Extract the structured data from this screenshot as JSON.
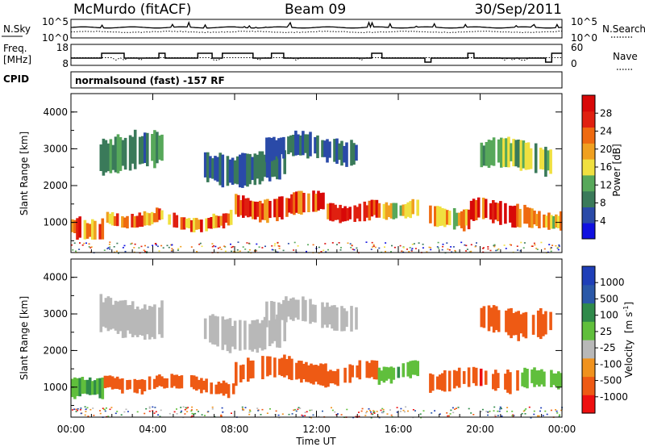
{
  "header": {
    "station": "McMurdo (fitACF)",
    "beam": "Beam 09",
    "date": "30/Sep/2011"
  },
  "noise_panel": {
    "left_label": "N.Sky",
    "right_label": "N.Search",
    "left_ticks": [
      "10^5",
      "10^0"
    ],
    "right_ticks": [
      "10^5",
      "10^0"
    ]
  },
  "freq_panel": {
    "left_label_line1": "Freq.",
    "left_label_line2": "[MHz]",
    "left_ticks": [
      "18",
      "8"
    ],
    "right_label": "Nave",
    "right_ticks": [
      "60",
      "0"
    ]
  },
  "cpid": {
    "label": "CPID",
    "text": "normalsound (fast) -157 RF"
  },
  "colors": {
    "power_scale": [
      "#1010e0",
      "#2a4aa8",
      "#3a7a5a",
      "#57a85a",
      "#f0e040",
      "#f0a020",
      "#ef6a10",
      "#e02010",
      "#d80808"
    ],
    "velocity_scale": [
      "#ee1010",
      "#ee5a14",
      "#f0921e",
      "#b8b8b8",
      "#60bf3c",
      "#2f8a4a",
      "#2a58a8",
      "#1f3fb8"
    ],
    "ground_scatter": "#9a9a9a"
  },
  "chart_data": [
    {
      "type": "heatmap",
      "title": "",
      "xlabel": "Time UT",
      "ylabel": "Slant Range [km]",
      "x_ticks": [
        "00:00",
        "04:00",
        "08:00",
        "12:00",
        "16:00",
        "20:00",
        "00:00"
      ],
      "y_ticks": [
        "1000",
        "2000",
        "3000",
        "4000"
      ],
      "xlim_hours": [
        0,
        24
      ],
      "ylim_km": [
        180,
        4500
      ],
      "colorbar_label": "Power [dB]",
      "colorbar_ticks": [
        "4",
        "8",
        "12",
        "16",
        "20",
        "24",
        "28"
      ],
      "colorbar_range": [
        0,
        30
      ],
      "echo_bands": [
        {
          "start_h": 0.0,
          "end_h": 1.6,
          "center_km": 900,
          "width_km": 500,
          "value": 22
        },
        {
          "start_h": 1.6,
          "end_h": 4.5,
          "center_km": 1150,
          "width_km": 350,
          "value": 20
        },
        {
          "start_h": 4.5,
          "end_h": 8.0,
          "center_km": 1050,
          "width_km": 350,
          "value": 22
        },
        {
          "start_h": 8.0,
          "end_h": 12.5,
          "center_km": 1450,
          "width_km": 550,
          "value": 24
        },
        {
          "start_h": 12.5,
          "end_h": 15.0,
          "center_km": 1350,
          "width_km": 450,
          "value": 25
        },
        {
          "start_h": 15.0,
          "end_h": 17.0,
          "center_km": 1400,
          "width_km": 400,
          "value": 16
        },
        {
          "start_h": 17.5,
          "end_h": 19.5,
          "center_km": 1200,
          "width_km": 500,
          "value": 18
        },
        {
          "start_h": 19.5,
          "end_h": 22.0,
          "center_km": 1250,
          "width_km": 550,
          "value": 26
        },
        {
          "start_h": 22.0,
          "end_h": 24.0,
          "center_km": 1150,
          "width_km": 450,
          "value": 18
        },
        {
          "start_h": 1.4,
          "end_h": 4.5,
          "center_km": 2900,
          "width_km": 900,
          "value": 9
        },
        {
          "start_h": 6.5,
          "end_h": 10.5,
          "center_km": 2500,
          "width_km": 800,
          "value": 7
        },
        {
          "start_h": 9.5,
          "end_h": 14.0,
          "center_km": 3000,
          "width_km": 600,
          "value": 6
        },
        {
          "start_h": 20.0,
          "end_h": 23.5,
          "center_km": 2800,
          "width_km": 700,
          "value": 12
        }
      ]
    },
    {
      "type": "heatmap",
      "title": "",
      "xlabel": "Time UT",
      "ylabel": "Slant Range [km]",
      "x_ticks": [
        "00:00",
        "04:00",
        "08:00",
        "12:00",
        "16:00",
        "20:00",
        "00:00"
      ],
      "y_ticks": [
        "1000",
        "2000",
        "3000",
        "4000"
      ],
      "xlim_hours": [
        0,
        24
      ],
      "ylim_km": [
        180,
        4500
      ],
      "colorbar_label": "Velocity [m s^-1]",
      "colorbar_title": "Velocity",
      "colorbar_unit": "[m s",
      "colorbar_unit_exp": "-1",
      "colorbar_unit_close": "]",
      "colorbar_ticks": [
        "1000",
        "500",
        "100",
        "25",
        "-25",
        "-100",
        "-500",
        "-1000"
      ],
      "colorbar_range": [
        -1000,
        1000
      ],
      "echo_bands": [
        {
          "start_h": 0.0,
          "end_h": 1.6,
          "center_km": 900,
          "width_km": 500,
          "value": 120
        },
        {
          "start_h": 1.6,
          "end_h": 4.5,
          "center_km": 1150,
          "width_km": 350,
          "value": -150
        },
        {
          "start_h": 4.5,
          "end_h": 8.0,
          "center_km": 1050,
          "width_km": 350,
          "value": -200
        },
        {
          "start_h": 8.0,
          "end_h": 12.5,
          "center_km": 1450,
          "width_km": 550,
          "value": -250
        },
        {
          "start_h": 12.5,
          "end_h": 15.0,
          "center_km": 1350,
          "width_km": 450,
          "value": -300
        },
        {
          "start_h": 15.0,
          "end_h": 17.0,
          "center_km": 1400,
          "width_km": 400,
          "value": 80
        },
        {
          "start_h": 17.5,
          "end_h": 19.5,
          "center_km": 1200,
          "width_km": 500,
          "value": -200
        },
        {
          "start_h": 19.5,
          "end_h": 22.0,
          "center_km": 1250,
          "width_km": 550,
          "value": -400
        },
        {
          "start_h": 22.0,
          "end_h": 24.0,
          "center_km": 1150,
          "width_km": 450,
          "value": 60
        },
        {
          "start_h": 1.4,
          "end_h": 4.5,
          "center_km": 2900,
          "width_km": 900,
          "value": 0
        },
        {
          "start_h": 6.5,
          "end_h": 10.5,
          "center_km": 2500,
          "width_km": 800,
          "value": 0
        },
        {
          "start_h": 9.5,
          "end_h": 14.0,
          "center_km": 3000,
          "width_km": 600,
          "value": 0
        },
        {
          "start_h": 20.0,
          "end_h": 23.5,
          "center_km": 2800,
          "width_km": 700,
          "value": -150
        }
      ]
    }
  ]
}
